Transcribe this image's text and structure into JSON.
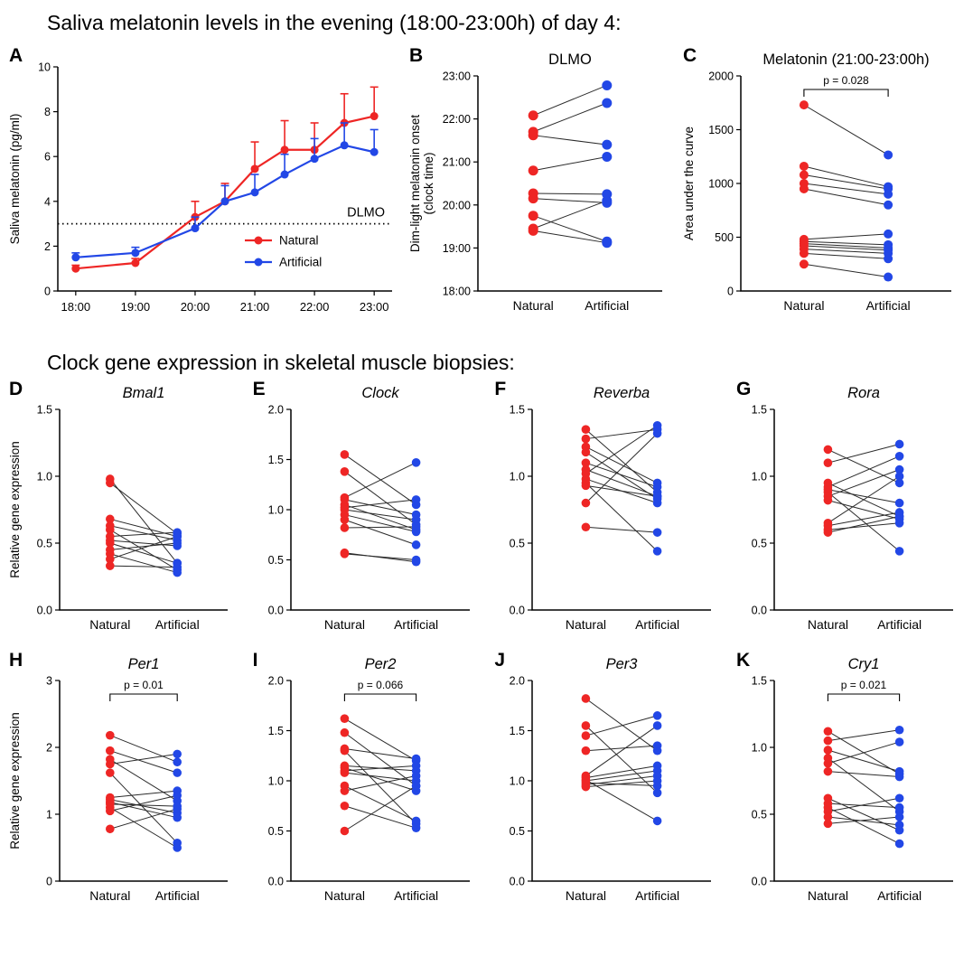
{
  "sections": {
    "melatonin_title": "Saliva melatonin levels in the evening (18:00-23:00h) of day 4:",
    "gene_title": "Clock gene expression in skeletal muscle biopsies:"
  },
  "colors": {
    "natural": "#ee2625",
    "artificial": "#2247e6",
    "pair_line": "#2b2b2b",
    "axis": "#000000"
  },
  "chart_data": [
    {
      "panel": "A",
      "type": "line",
      "title": "",
      "ylabel": "Saliva melatonin (pg/ml)",
      "ylim": [
        0,
        10
      ],
      "yticks": [
        0,
        2,
        4,
        6,
        8,
        10
      ],
      "ytick_labels": [
        "0",
        "2",
        "4",
        "6",
        "8",
        "10"
      ],
      "xlim": [
        17.7,
        23.3
      ],
      "x": [
        18,
        19,
        20,
        20.5,
        21,
        21.5,
        22,
        22.5,
        23
      ],
      "xticks": [
        18,
        19,
        20,
        21,
        22,
        23
      ],
      "xtick_labels": [
        "18:00",
        "19:00",
        "20:00",
        "21:00",
        "22:00",
        "23:00"
      ],
      "ref_line": {
        "value": 3,
        "label": "DLMO"
      },
      "legend_position": "bottom-right",
      "series": [
        {
          "name": "Natural",
          "color_key": "natural",
          "values": [
            1.0,
            1.25,
            3.3,
            4.0,
            5.45,
            6.3,
            6.3,
            7.5,
            7.8
          ],
          "errors": [
            0.15,
            0.2,
            0.7,
            0.8,
            1.2,
            1.3,
            1.2,
            1.3,
            1.3
          ]
        },
        {
          "name": "Artificial",
          "color_key": "artificial",
          "values": [
            1.5,
            1.7,
            2.8,
            4.0,
            4.4,
            5.2,
            5.9,
            6.5,
            6.2
          ],
          "errors": [
            0.2,
            0.25,
            0.5,
            0.7,
            0.8,
            0.9,
            0.9,
            1.0,
            1.0
          ]
        }
      ]
    },
    {
      "panel": "B",
      "type": "paired",
      "title": "DLMO",
      "title_italic": false,
      "ylabel": "Dim-light melatonin onset\n(clock time)",
      "ylim": [
        18,
        23
      ],
      "yticks": [
        18,
        19,
        20,
        21,
        22,
        23
      ],
      "ytick_labels": [
        "18:00",
        "19:00",
        "20:00",
        "21:00",
        "22:00",
        "23:00"
      ],
      "categories": [
        "Natural",
        "Artificial"
      ],
      "pairs": [
        [
          22.08,
          22.78
        ],
        [
          21.7,
          22.37
        ],
        [
          21.62,
          21.4
        ],
        [
          20.8,
          21.12
        ],
        [
          20.27,
          20.25
        ],
        [
          20.15,
          20.05
        ],
        [
          19.75,
          19.15
        ],
        [
          19.45,
          20.1
        ],
        [
          19.4,
          19.12
        ]
      ]
    },
    {
      "panel": "C",
      "type": "paired",
      "title": "Melatonin (21:00-23:00h)",
      "title_italic": false,
      "ylabel": "Area under the curve",
      "ylim": [
        0,
        2000
      ],
      "yticks": [
        0,
        500,
        1000,
        1500,
        2000
      ],
      "ytick_labels": [
        "0",
        "500",
        "1000",
        "1500",
        "2000"
      ],
      "p_label": "p = 0.028",
      "categories": [
        "Natural",
        "Artificial"
      ],
      "pairs": [
        [
          1730,
          1265
        ],
        [
          1160,
          970
        ],
        [
          1080,
          950
        ],
        [
          1000,
          900
        ],
        [
          950,
          800
        ],
        [
          480,
          530
        ],
        [
          460,
          430
        ],
        [
          440,
          400
        ],
        [
          420,
          380
        ],
        [
          390,
          350
        ],
        [
          350,
          300
        ],
        [
          250,
          130
        ]
      ]
    },
    {
      "panel": "D",
      "type": "paired",
      "title": "Bmal1",
      "title_italic": true,
      "ylabel": "Relative gene expression",
      "ylim": [
        0,
        1.5
      ],
      "yticks": [
        0,
        0.5,
        1.0,
        1.5
      ],
      "ytick_labels": [
        "0.0",
        "0.5",
        "1.0",
        "1.5"
      ],
      "categories": [
        "Natural",
        "Artificial"
      ],
      "pairs": [
        [
          0.98,
          0.35
        ],
        [
          0.95,
          0.57
        ],
        [
          0.68,
          0.55
        ],
        [
          0.63,
          0.52
        ],
        [
          0.6,
          0.3
        ],
        [
          0.55,
          0.58
        ],
        [
          0.52,
          0.48
        ],
        [
          0.5,
          0.35
        ],
        [
          0.45,
          0.5
        ],
        [
          0.42,
          0.28
        ],
        [
          0.38,
          0.55
        ],
        [
          0.33,
          0.32
        ]
      ]
    },
    {
      "panel": "E",
      "type": "paired",
      "title": "Clock",
      "title_italic": true,
      "ylim": [
        0,
        2
      ],
      "yticks": [
        0,
        0.5,
        1.0,
        1.5,
        2.0
      ],
      "ytick_labels": [
        "0.0",
        "0.5",
        "1.0",
        "1.5",
        "2.0"
      ],
      "categories": [
        "Natural",
        "Artificial"
      ],
      "pairs": [
        [
          1.55,
          1.05
        ],
        [
          1.38,
          0.85
        ],
        [
          1.12,
          1.47
        ],
        [
          1.1,
          0.95
        ],
        [
          1.05,
          0.8
        ],
        [
          1.02,
          1.1
        ],
        [
          1.0,
          0.9
        ],
        [
          0.95,
          0.78
        ],
        [
          0.9,
          0.65
        ],
        [
          0.82,
          0.83
        ],
        [
          0.57,
          0.48
        ],
        [
          0.56,
          0.5
        ]
      ]
    },
    {
      "panel": "F",
      "type": "paired",
      "title": "Reverba",
      "title_italic": true,
      "ylim": [
        0,
        1.5
      ],
      "yticks": [
        0,
        0.5,
        1.0,
        1.5
      ],
      "ytick_labels": [
        "0.0",
        "0.5",
        "1.0",
        "1.5"
      ],
      "categories": [
        "Natural",
        "Artificial"
      ],
      "pairs": [
        [
          1.35,
          0.88
        ],
        [
          1.28,
          1.35
        ],
        [
          1.22,
          0.95
        ],
        [
          1.18,
          0.83
        ],
        [
          1.1,
          0.92
        ],
        [
          1.05,
          0.85
        ],
        [
          1.02,
          1.38
        ],
        [
          0.98,
          0.8
        ],
        [
          0.95,
          0.44
        ],
        [
          0.93,
          0.85
        ],
        [
          0.8,
          1.32
        ],
        [
          0.62,
          0.58
        ]
      ]
    },
    {
      "panel": "G",
      "type": "paired",
      "title": "Rora",
      "title_italic": true,
      "ylim": [
        0,
        1.5
      ],
      "yticks": [
        0,
        0.5,
        1.0,
        1.5
      ],
      "ytick_labels": [
        "0.0",
        "0.5",
        "1.0",
        "1.5"
      ],
      "categories": [
        "Natural",
        "Artificial"
      ],
      "pairs": [
        [
          1.2,
          0.95
        ],
        [
          1.1,
          1.24
        ],
        [
          0.95,
          0.7
        ],
        [
          0.92,
          1.15
        ],
        [
          0.9,
          0.8
        ],
        [
          0.88,
          0.44
        ],
        [
          0.85,
          1.05
        ],
        [
          0.82,
          0.68
        ],
        [
          0.65,
          1.0
        ],
        [
          0.63,
          0.73
        ],
        [
          0.6,
          0.65
        ],
        [
          0.58,
          0.7
        ]
      ]
    },
    {
      "panel": "H",
      "type": "paired",
      "title": "Per1",
      "title_italic": true,
      "ylabel": "Relative gene expression",
      "ylim": [
        0,
        3
      ],
      "yticks": [
        0,
        1,
        2,
        3
      ],
      "ytick_labels": [
        "0",
        "1",
        "2",
        "3"
      ],
      "p_label": "p = 0.01",
      "categories": [
        "Natural",
        "Artificial"
      ],
      "pairs": [
        [
          2.18,
          1.78
        ],
        [
          1.95,
          1.62
        ],
        [
          1.82,
          1.2
        ],
        [
          1.75,
          1.9
        ],
        [
          1.62,
          0.57
        ],
        [
          1.25,
          1.35
        ],
        [
          1.22,
          1.02
        ],
        [
          1.18,
          0.95
        ],
        [
          1.15,
          1.12
        ],
        [
          1.1,
          0.5
        ],
        [
          1.05,
          1.28
        ],
        [
          0.78,
          1.08
        ]
      ]
    },
    {
      "panel": "I",
      "type": "paired",
      "title": "Per2",
      "title_italic": true,
      "ylim": [
        0,
        2
      ],
      "yticks": [
        0,
        0.5,
        1.0,
        1.5,
        2.0
      ],
      "ytick_labels": [
        "0.0",
        "0.5",
        "1.0",
        "1.5",
        "2.0"
      ],
      "p_label": "p = 0.066",
      "categories": [
        "Natural",
        "Artificial"
      ],
      "pairs": [
        [
          1.62,
          1.2
        ],
        [
          1.48,
          0.95
        ],
        [
          1.32,
          1.22
        ],
        [
          1.3,
          0.57
        ],
        [
          1.15,
          1.1
        ],
        [
          1.13,
          0.9
        ],
        [
          1.1,
          1.15
        ],
        [
          1.08,
          1.0
        ],
        [
          0.95,
          0.6
        ],
        [
          0.9,
          1.05
        ],
        [
          0.75,
          0.53
        ],
        [
          0.5,
          0.95
        ]
      ]
    },
    {
      "panel": "J",
      "type": "paired",
      "title": "Per3",
      "title_italic": true,
      "ylim": [
        0,
        2
      ],
      "yticks": [
        0,
        0.5,
        1.0,
        1.5,
        2.0
      ],
      "ytick_labels": [
        "0.0",
        "0.5",
        "1.0",
        "1.5",
        "2.0"
      ],
      "categories": [
        "Natural",
        "Artificial"
      ],
      "pairs": [
        [
          1.82,
          1.3
        ],
        [
          1.55,
          0.88
        ],
        [
          1.45,
          1.65
        ],
        [
          1.3,
          1.35
        ],
        [
          1.05,
          1.55
        ],
        [
          1.03,
          1.15
        ],
        [
          1.01,
          0.6
        ],
        [
          1.0,
          1.1
        ],
        [
          0.98,
          0.95
        ],
        [
          0.96,
          1.05
        ],
        [
          0.94,
          1.0
        ]
      ]
    },
    {
      "panel": "K",
      "type": "paired",
      "title": "Cry1",
      "title_italic": true,
      "ylim": [
        0,
        1.5
      ],
      "yticks": [
        0,
        0.5,
        1.0,
        1.5
      ],
      "ytick_labels": [
        "0.0",
        "0.5",
        "1.0",
        "1.5"
      ],
      "p_label": "p = 0.021",
      "categories": [
        "Natural",
        "Artificial"
      ],
      "pairs": [
        [
          1.12,
          0.8
        ],
        [
          1.05,
          1.13
        ],
        [
          0.98,
          0.82
        ],
        [
          0.92,
          0.52
        ],
        [
          0.88,
          1.04
        ],
        [
          0.82,
          0.78
        ],
        [
          0.62,
          0.38
        ],
        [
          0.58,
          0.55
        ],
        [
          0.55,
          0.28
        ],
        [
          0.52,
          0.62
        ],
        [
          0.48,
          0.42
        ],
        [
          0.43,
          0.48
        ]
      ]
    }
  ]
}
